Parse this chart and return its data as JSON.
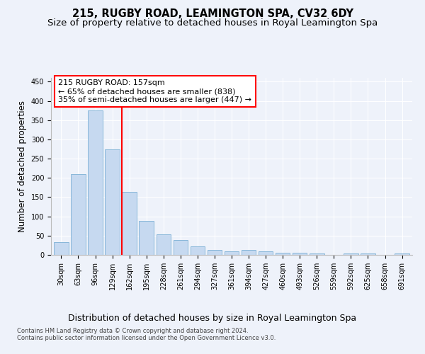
{
  "title": "215, RUGBY ROAD, LEAMINGTON SPA, CV32 6DY",
  "subtitle": "Size of property relative to detached houses in Royal Leamington Spa",
  "xlabel": "Distribution of detached houses by size in Royal Leamington Spa",
  "ylabel": "Number of detached properties",
  "footnote1": "Contains HM Land Registry data © Crown copyright and database right 2024.",
  "footnote2": "Contains public sector information licensed under the Open Government Licence v3.0.",
  "bar_labels": [
    "30sqm",
    "63sqm",
    "96sqm",
    "129sqm",
    "162sqm",
    "195sqm",
    "228sqm",
    "261sqm",
    "294sqm",
    "327sqm",
    "361sqm",
    "394sqm",
    "427sqm",
    "460sqm",
    "493sqm",
    "526sqm",
    "559sqm",
    "592sqm",
    "625sqm",
    "658sqm",
    "691sqm"
  ],
  "bar_values": [
    33,
    210,
    375,
    275,
    163,
    88,
    53,
    39,
    22,
    12,
    10,
    13,
    10,
    5,
    5,
    4,
    0,
    3,
    4,
    0,
    3
  ],
  "bar_color": "#c6d9f0",
  "bar_edge_color": "#7aafd4",
  "vline_color": "red",
  "vline_pos": 3.575,
  "annotation_text": "215 RUGBY ROAD: 157sqm\n← 65% of detached houses are smaller (838)\n35% of semi-detached houses are larger (447) →",
  "annotation_box_facecolor": "white",
  "annotation_box_edgecolor": "red",
  "ylim": [
    0,
    460
  ],
  "yticks": [
    0,
    50,
    100,
    150,
    200,
    250,
    300,
    350,
    400,
    450
  ],
  "bg_color": "#eef2fa",
  "grid_color": "white",
  "title_fontsize": 10.5,
  "subtitle_fontsize": 9.5,
  "xlabel_fontsize": 9,
  "ylabel_fontsize": 8.5,
  "tick_fontsize": 7,
  "annotation_fontsize": 8,
  "footnote_fontsize": 6
}
